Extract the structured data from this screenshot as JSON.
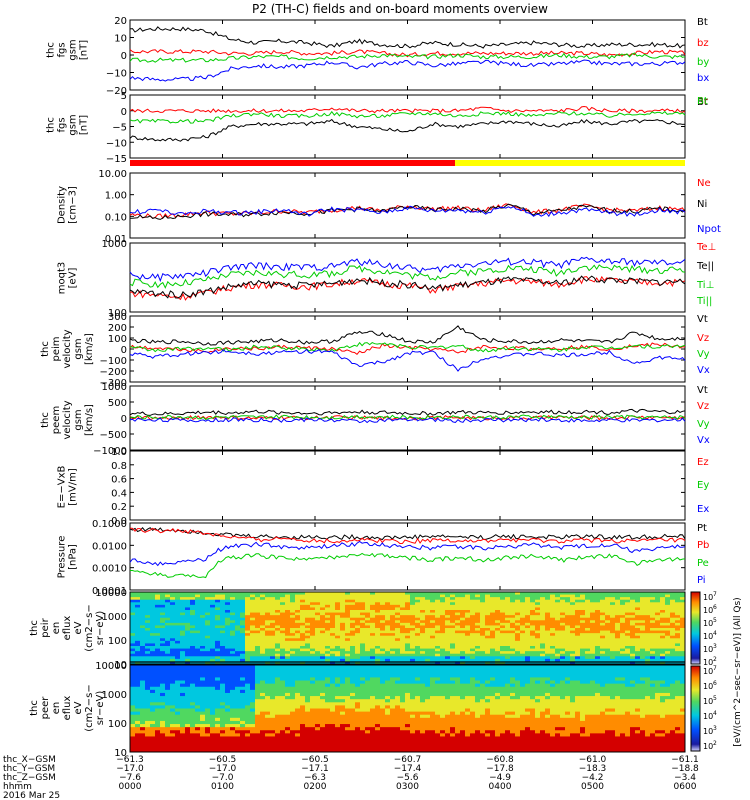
{
  "title": "P2 (TH-C) fields and on-board moments overview",
  "colors": {
    "black": "#000000",
    "red": "#ff0000",
    "green": "#00cc00",
    "blue": "#0000ff",
    "yellow": "#ffff00"
  },
  "chart_data": [
    {
      "type": "line",
      "ylabel": [
        "thc",
        "fgs",
        "gsm",
        "[nT]"
      ],
      "yticks": [
        "20",
        "10",
        "0",
        "−10",
        "−20"
      ],
      "ylim": [
        -20,
        20
      ],
      "legend": [
        {
          "label": "Bt",
          "color": "black"
        },
        {
          "label": "bz",
          "color": "red"
        },
        {
          "label": "by",
          "color": "green"
        },
        {
          "label": "bx",
          "color": "blue"
        }
      ],
      "series": [
        {
          "name": "Bt",
          "color": "black",
          "values": [
            14,
            15,
            15,
            14,
            9,
            7,
            8,
            7,
            5,
            8,
            6,
            5,
            7,
            6,
            5,
            6,
            7,
            6,
            5,
            6,
            6,
            6,
            5
          ]
        },
        {
          "name": "bz",
          "color": "red",
          "values": [
            2,
            2,
            2,
            2,
            1,
            1,
            2,
            1,
            1,
            2,
            1,
            0,
            1,
            1,
            1,
            1,
            1,
            1,
            1,
            0,
            1,
            2,
            1
          ]
        },
        {
          "name": "by",
          "color": "green",
          "values": [
            -3,
            -3,
            -3,
            -3,
            -2,
            -1,
            -1,
            -2,
            -1,
            -1,
            0,
            -1,
            -1,
            0,
            -1,
            -1,
            -1,
            0,
            -1,
            -1,
            0,
            -1,
            -1
          ]
        },
        {
          "name": "bx",
          "color": "blue",
          "values": [
            -13,
            -14,
            -14,
            -13,
            -8,
            -6,
            -7,
            -6,
            -4,
            -7,
            -5,
            -4,
            -6,
            -5,
            -4,
            -5,
            -6,
            -5,
            -4,
            -5,
            -5,
            -5,
            -4
          ]
        }
      ]
    },
    {
      "type": "line",
      "ylabel": [
        "thc",
        "fgs",
        "gsm",
        "[nT]"
      ],
      "yticks": [
        "5",
        "0",
        "−5",
        "−10",
        "−15"
      ],
      "ylim": [
        -17,
        7
      ],
      "legend": [
        {
          "label": "Bt",
          "color": "black"
        },
        {
          "label": "Br",
          "color": "red"
        },
        {
          "label": "Bt",
          "color": "green"
        }
      ],
      "series": [
        {
          "name": "Bt",
          "color": "black",
          "values": [
            -9,
            -10,
            -10,
            -9,
            -5,
            -4,
            -4,
            -4,
            -3,
            -5,
            -6,
            -7,
            -4,
            -5,
            -4,
            -3,
            -4,
            -5,
            -3,
            -4,
            -3,
            -3,
            -4
          ]
        },
        {
          "name": "Br",
          "color": "red",
          "values": [
            1,
            1,
            1,
            1,
            1,
            1,
            1,
            1,
            2,
            1,
            1,
            1,
            1,
            1,
            2,
            1,
            1,
            1,
            2,
            1,
            1,
            1,
            1
          ]
        },
        {
          "name": "Bt",
          "color": "green",
          "values": [
            -3,
            -3,
            -3,
            -3,
            -1,
            0,
            -1,
            -1,
            0,
            -1,
            -1,
            0,
            0,
            -1,
            0,
            0,
            -1,
            0,
            0,
            -1,
            0,
            0,
            0
          ]
        }
      ]
    },
    {
      "type": "line",
      "scale": "log",
      "ylabel": [
        "Density",
        "[cm−3]"
      ],
      "yticks": [
        "10.00",
        "1.00",
        "0.10",
        "0.01"
      ],
      "ylim": [
        0.01,
        10
      ],
      "legend": [
        {
          "label": "Ne",
          "color": "red"
        },
        {
          "label": "Ni",
          "color": "black"
        },
        {
          "label": "Npot",
          "color": "blue"
        }
      ],
      "series": [
        {
          "name": "Ne",
          "color": "red",
          "values": [
            0.12,
            0.1,
            0.12,
            0.15,
            0.13,
            0.14,
            0.18,
            0.15,
            0.2,
            0.25,
            0.18,
            0.3,
            0.22,
            0.25,
            0.18,
            0.35,
            0.15,
            0.2,
            0.3,
            0.2,
            0.18,
            0.25,
            0.2
          ]
        },
        {
          "name": "Ni",
          "color": "black",
          "values": [
            0.1,
            0.08,
            0.1,
            0.13,
            0.12,
            0.13,
            0.16,
            0.14,
            0.18,
            0.22,
            0.17,
            0.28,
            0.2,
            0.23,
            0.17,
            0.32,
            0.14,
            0.18,
            0.28,
            0.19,
            0.17,
            0.23,
            0.18
          ]
        },
        {
          "name": "Npot",
          "color": "blue",
          "values": [
            0.15,
            0.2,
            0.12,
            0.18,
            0.15,
            0.16,
            0.2,
            0.12,
            0.22,
            0.2,
            0.15,
            0.25,
            0.18,
            0.2,
            0.15,
            0.3,
            0.1,
            0.15,
            0.2,
            0.15,
            0.12,
            0.2,
            0.15
          ]
        }
      ]
    },
    {
      "type": "line",
      "scale": "log",
      "ylabel": [
        "moqt3",
        "[eV]"
      ],
      "yticks": [
        "1000",
        "100"
      ],
      "ylim": [
        20,
        3000
      ],
      "legend": [
        {
          "label": "Te⊥",
          "color": "red"
        },
        {
          "label": "Te||",
          "color": "black"
        },
        {
          "label": "Ti⊥",
          "color": "green"
        },
        {
          "label": "Ti||",
          "color": "green"
        }
      ],
      "series": [
        {
          "name": "Te⊥",
          "color": "red",
          "values": [
            80,
            70,
            60,
            80,
            120,
            150,
            140,
            130,
            150,
            200,
            160,
            140,
            100,
            130,
            160,
            200,
            180,
            150,
            220,
            200,
            180,
            170,
            180
          ]
        },
        {
          "name": "Te||",
          "color": "black",
          "values": [
            90,
            80,
            70,
            90,
            130,
            160,
            150,
            140,
            160,
            210,
            170,
            150,
            110,
            140,
            170,
            210,
            190,
            160,
            230,
            210,
            190,
            180,
            190
          ]
        },
        {
          "name": "Ti⊥",
          "color": "green",
          "values": [
            180,
            150,
            160,
            200,
            300,
            350,
            320,
            300,
            330,
            500,
            400,
            300,
            250,
            350,
            400,
            500,
            450,
            350,
            550,
            500,
            450,
            420,
            450
          ]
        },
        {
          "name": "Ti||",
          "color": "blue",
          "values": [
            300,
            250,
            280,
            350,
            500,
            600,
            550,
            520,
            560,
            800,
            650,
            500,
            400,
            600,
            700,
            800,
            750,
            600,
            900,
            800,
            750,
            700,
            750
          ]
        }
      ]
    },
    {
      "type": "line",
      "ylabel": [
        "thc",
        "peim",
        "velocity",
        "gsm",
        "[km/s]"
      ],
      "yticks": [
        "300",
        "200",
        "100",
        "0",
        "−100",
        "−200",
        "−300"
      ],
      "ylim": [
        -300,
        300
      ],
      "legend": [
        {
          "label": "Vt",
          "color": "black"
        },
        {
          "label": "Vz",
          "color": "red"
        },
        {
          "label": "Vy",
          "color": "green"
        },
        {
          "label": "Vx",
          "color": "blue"
        }
      ],
      "series": [
        {
          "name": "Vt",
          "color": "black",
          "values": [
            80,
            60,
            70,
            50,
            60,
            70,
            80,
            60,
            70,
            150,
            140,
            70,
            60,
            200,
            80,
            70,
            60,
            80,
            70,
            60,
            150,
            90,
            100
          ]
        },
        {
          "name": "Vz",
          "color": "red",
          "values": [
            20,
            10,
            0,
            -20,
            10,
            0,
            20,
            10,
            0,
            -40,
            30,
            10,
            0,
            -30,
            20,
            10,
            0,
            10,
            20,
            0,
            30,
            40,
            20
          ]
        },
        {
          "name": "Vy",
          "color": "green",
          "values": [
            10,
            -10,
            0,
            10,
            -10,
            20,
            10,
            0,
            -10,
            40,
            50,
            20,
            10,
            30,
            -20,
            10,
            0,
            -10,
            20,
            10,
            30,
            20,
            30
          ]
        },
        {
          "name": "Vx",
          "color": "blue",
          "values": [
            -40,
            -70,
            -50,
            -30,
            -20,
            -40,
            -30,
            -20,
            -30,
            -150,
            -120,
            -40,
            -30,
            -190,
            -80,
            -60,
            -40,
            -60,
            -50,
            -30,
            -130,
            -80,
            -90
          ]
        }
      ]
    },
    {
      "type": "line",
      "ylabel": [
        "thc",
        "peem",
        "velocity",
        "gsm",
        "[km/s]"
      ],
      "yticks": [
        "1000",
        "500",
        "0",
        "−500",
        "−1000"
      ],
      "ylim": [
        -1000,
        1000
      ],
      "legend": [
        {
          "label": "Vt",
          "color": "black"
        },
        {
          "label": "Vz",
          "color": "red"
        },
        {
          "label": "Vy",
          "color": "green"
        },
        {
          "label": "Vx",
          "color": "blue"
        }
      ],
      "series": [
        {
          "name": "Vt",
          "color": "black",
          "values": [
            150,
            120,
            140,
            180,
            160,
            200,
            170,
            150,
            160,
            190,
            170,
            150,
            140,
            180,
            160,
            170,
            190,
            180,
            200,
            170,
            220,
            190,
            180
          ]
        },
        {
          "name": "Vz",
          "color": "red",
          "values": [
            20,
            -10,
            0,
            30,
            10,
            -20,
            10,
            0,
            20,
            10,
            -10,
            0,
            10,
            20,
            -10,
            10,
            0,
            20,
            10,
            0,
            30,
            20,
            10
          ]
        },
        {
          "name": "Vy",
          "color": "green",
          "values": [
            30,
            20,
            40,
            10,
            30,
            20,
            40,
            30,
            20,
            50,
            30,
            20,
            30,
            40,
            20,
            30,
            40,
            30,
            20,
            40,
            30,
            20,
            30
          ]
        },
        {
          "name": "Vx",
          "color": "blue",
          "values": [
            -60,
            -40,
            -80,
            -70,
            -50,
            -60,
            -80,
            -50,
            -60,
            -100,
            -70,
            -60,
            -50,
            -90,
            -60,
            -70,
            -50,
            -60,
            -90,
            -70,
            -80,
            -60,
            -70
          ]
        }
      ]
    },
    {
      "type": "line",
      "ylabel": [
        "E=−VxB",
        "[mV/m]"
      ],
      "yticks": [
        "1.0",
        "0.8",
        "0.6",
        "0.4",
        "0.2",
        "0.0"
      ],
      "ylim": [
        0,
        1
      ],
      "legend": [
        {
          "label": "Ez",
          "color": "red"
        },
        {
          "label": "Ey",
          "color": "green"
        },
        {
          "label": "Ex",
          "color": "blue"
        }
      ],
      "series": []
    },
    {
      "type": "line",
      "scale": "log",
      "ylabel": [
        "Pressure",
        "[nPa]"
      ],
      "yticks": [
        "0.1000",
        "0.0100",
        "0.0010",
        "0.0001"
      ],
      "ylim": [
        0.0001,
        0.2
      ],
      "legend": [
        {
          "label": "Pt",
          "color": "black"
        },
        {
          "label": "Pb",
          "color": "red"
        },
        {
          "label": "Pe",
          "color": "green"
        },
        {
          "label": "Pi",
          "color": "blue"
        }
      ],
      "series": [
        {
          "name": "Pt",
          "color": "black",
          "values": [
            0.1,
            0.095,
            0.09,
            0.07,
            0.05,
            0.045,
            0.04,
            0.042,
            0.04,
            0.042,
            0.038,
            0.04,
            0.045,
            0.042,
            0.04,
            0.045,
            0.042,
            0.04,
            0.045,
            0.042,
            0.04,
            0.045,
            0.042
          ]
        },
        {
          "name": "Pb",
          "color": "red",
          "values": [
            0.09,
            0.088,
            0.085,
            0.06,
            0.04,
            0.03,
            0.035,
            0.03,
            0.025,
            0.03,
            0.028,
            0.025,
            0.03,
            0.028,
            0.025,
            0.03,
            0.028,
            0.025,
            0.03,
            0.028,
            0.025,
            0.03,
            0.028
          ]
        },
        {
          "name": "Pe",
          "color": "green",
          "values": [
            0.0008,
            0.0006,
            0.0005,
            0.0004,
            0.004,
            0.005,
            0.004,
            0.003,
            0.004,
            0.006,
            0.005,
            0.004,
            0.003,
            0.004,
            0.003,
            0.004,
            0.005,
            0.003,
            0.004,
            0.005,
            0.002,
            0.003,
            0.004
          ]
        },
        {
          "name": "Pi",
          "color": "blue",
          "values": [
            0.003,
            0.002,
            0.0025,
            0.003,
            0.015,
            0.018,
            0.014,
            0.012,
            0.015,
            0.02,
            0.017,
            0.014,
            0.012,
            0.015,
            0.012,
            0.014,
            0.018,
            0.012,
            0.015,
            0.018,
            0.008,
            0.012,
            0.014
          ]
        }
      ]
    },
    {
      "type": "heatmap",
      "scale": "log",
      "ylabel": [
        "thc",
        "peir",
        "en",
        "eflux",
        "eV",
        "(cm2−s−",
        "sr−eV)"
      ],
      "yticks": [
        "10000",
        "1000",
        "100",
        "10"
      ],
      "ylim": [
        5,
        30000
      ]
    },
    {
      "type": "heatmap",
      "scale": "log",
      "ylabel": [
        "thc",
        "peer",
        "en",
        "eflux",
        "eV",
        "(cm2−s−",
        "sr−eV)"
      ],
      "yticks": [
        "10000",
        "1000",
        "100",
        "10"
      ],
      "ylim": [
        5,
        30000
      ]
    }
  ],
  "colorbar": {
    "label": "[eV/(cm^2−sec−sr−eV)] (All Qs)",
    "ticks": [
      "10",
      "10",
      "10",
      "10",
      "10",
      "10",
      "10",
      "10",
      "10",
      "10",
      "10",
      "10"
    ],
    "exponents": [
      "7",
      "6",
      "5",
      "4",
      "3",
      "2",
      "7",
      "6",
      "5",
      "4",
      "3",
      "2"
    ]
  },
  "x_axis": {
    "row_labels": [
      "thc_X−GSM",
      "thc_Y−GSM",
      "thc_Z−GSM",
      "hhmm",
      "2016 Mar 25"
    ],
    "ticks": [
      {
        "x": "−61.3",
        "y": "−17.0",
        "z": "−7.6",
        "t": "0000"
      },
      {
        "x": "−60.5",
        "y": "−17.0",
        "z": "−7.0",
        "t": "0100"
      },
      {
        "x": "−60.5",
        "y": "−17.1",
        "z": "−6.3",
        "t": "0200"
      },
      {
        "x": "−60.7",
        "y": "−17.4",
        "z": "−5.6",
        "t": "0300"
      },
      {
        "x": "−60.8",
        "y": "−17.8",
        "z": "−4.9",
        "t": "0400"
      },
      {
        "x": "−61.0",
        "y": "−18.3",
        "z": "−4.2",
        "t": "0500"
      },
      {
        "x": "−61.1",
        "y": "−18.8",
        "z": "−3.4",
        "t": "0600"
      }
    ]
  }
}
